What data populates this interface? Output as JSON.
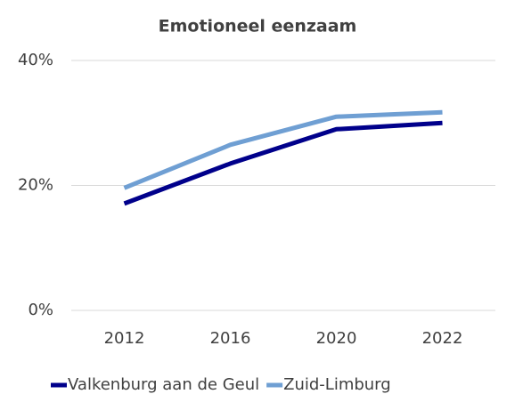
{
  "chart_data": {
    "type": "line",
    "title": "Emotioneel eenzaam",
    "categories": [
      "2012",
      "2016",
      "2020",
      "2022"
    ],
    "series": [
      {
        "name": "Valkenburg aan de Geul",
        "color": "#00008b",
        "values": [
          17.1,
          23.5,
          29.0,
          30.0
        ]
      },
      {
        "name": "Zuid-Limburg",
        "color": "#6f9fd3",
        "values": [
          19.6,
          26.5,
          31.0,
          31.7
        ]
      }
    ],
    "ylim": [
      0,
      40
    ],
    "yticks": [
      {
        "value": 0,
        "label": "0%"
      },
      {
        "value": 20,
        "label": "20%"
      },
      {
        "value": 40,
        "label": "40%"
      }
    ],
    "grid": true,
    "legend": "bottom"
  }
}
